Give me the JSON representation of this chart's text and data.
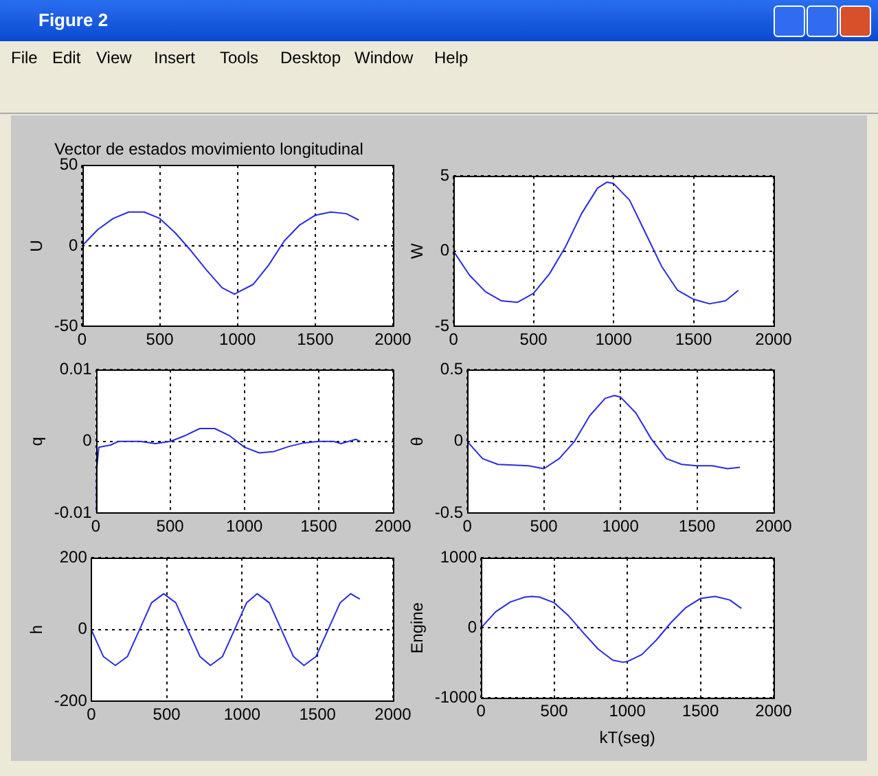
{
  "chart_data": [
    {
      "type": "line",
      "title": "Vector de estados movimiento longitudinal",
      "ylabel": "U",
      "annotations": [
        "Figure 2",
        "File",
        "Edit",
        "View",
        "Insert",
        "Tools",
        "Desktop",
        "Window",
        "Help"
      ],
      "x": [
        0,
        100,
        200,
        300,
        400,
        500,
        600,
        700,
        800,
        900,
        980,
        1000,
        1100,
        1200,
        1300,
        1400,
        1500,
        1600,
        1700,
        1780
      ],
      "series": [
        {
          "color": "#2a2ae0",
          "values": [
            0,
            10,
            17,
            21,
            21,
            17,
            8,
            -3,
            -15,
            -26,
            -30,
            -29,
            -24,
            -12,
            3,
            13,
            19,
            21,
            20,
            16
          ]
        }
      ],
      "xlim": [
        0,
        2000
      ],
      "xticks": [
        0,
        500,
        1000,
        1500,
        2000
      ],
      "ylim": [
        -50,
        50
      ],
      "yticks": [
        -50,
        0,
        50
      ],
      "grid": true
    },
    {
      "type": "line",
      "ylabel": "W",
      "x": [
        0,
        100,
        200,
        300,
        400,
        500,
        600,
        700,
        800,
        900,
        960,
        1000,
        1100,
        1200,
        1300,
        1400,
        1500,
        1600,
        1700,
        1780
      ],
      "series": [
        {
          "color": "#2a2ae0",
          "values": [
            0,
            -1.6,
            -2.7,
            -3.3,
            -3.4,
            -2.8,
            -1.5,
            0.3,
            2.5,
            4.2,
            4.6,
            4.5,
            3.4,
            1.2,
            -1.0,
            -2.6,
            -3.2,
            -3.5,
            -3.3,
            -2.6
          ]
        }
      ],
      "xlim": [
        0,
        2000
      ],
      "xticks": [
        0,
        500,
        1000,
        1500,
        2000
      ],
      "ylim": [
        -5,
        5
      ],
      "yticks": [
        -5,
        0,
        5
      ],
      "grid": true
    },
    {
      "type": "line",
      "ylabel": "q",
      "x": [
        0,
        5,
        20,
        100,
        150,
        300,
        400,
        500,
        600,
        700,
        800,
        900,
        1000,
        1100,
        1200,
        1300,
        1400,
        1500,
        1600,
        1650,
        1750,
        1780
      ],
      "series": [
        {
          "color": "#2a2ae0",
          "values": [
            -0.01,
            -0.004,
            -0.0008,
            -0.0005,
            0,
            0,
            -0.0003,
            0,
            0.0008,
            0.0018,
            0.0018,
            0.0008,
            -0.0008,
            -0.0016,
            -0.0014,
            -0.0007,
            -0.0002,
            0,
            0,
            -0.0003,
            0.0003,
            0
          ]
        }
      ],
      "xlim": [
        0,
        2000
      ],
      "xticks": [
        0,
        500,
        1000,
        1500,
        2000
      ],
      "ylim": [
        -0.01,
        0.01
      ],
      "yticks": [
        -0.01,
        0,
        0.01
      ],
      "grid": true
    },
    {
      "type": "line",
      "ylabel": "θ",
      "x": [
        0,
        100,
        200,
        400,
        500,
        600,
        700,
        800,
        900,
        960,
        1000,
        1100,
        1200,
        1300,
        1400,
        1500,
        1600,
        1700,
        1780
      ],
      "series": [
        {
          "color": "#2a2ae0",
          "values": [
            0,
            -0.12,
            -0.16,
            -0.17,
            -0.19,
            -0.12,
            0.0,
            0.18,
            0.3,
            0.32,
            0.31,
            0.2,
            0.02,
            -0.12,
            -0.16,
            -0.17,
            -0.17,
            -0.19,
            -0.18
          ]
        }
      ],
      "xlim": [
        0,
        2000
      ],
      "xticks": [
        0,
        500,
        1000,
        1500,
        2000
      ],
      "ylim": [
        -0.5,
        0.5
      ],
      "yticks": [
        -0.5,
        0,
        0.5
      ],
      "grid": true
    },
    {
      "type": "line",
      "ylabel": "h",
      "x": [
        0,
        80,
        160,
        240,
        320,
        400,
        480,
        560,
        640,
        720,
        790,
        870,
        950,
        1030,
        1100,
        1180,
        1260,
        1340,
        1410,
        1490,
        1570,
        1650,
        1720,
        1780
      ],
      "series": [
        {
          "color": "#2a2ae0",
          "values": [
            0,
            -75,
            -100,
            -75,
            0,
            75,
            100,
            75,
            0,
            -75,
            -100,
            -75,
            0,
            75,
            100,
            75,
            0,
            -75,
            -100,
            -75,
            0,
            75,
            100,
            85
          ]
        }
      ],
      "xlim": [
        0,
        2000
      ],
      "xticks": [
        0,
        500,
        1000,
        1500,
        2000
      ],
      "ylim": [
        -200,
        200
      ],
      "yticks": [
        -200,
        0,
        200
      ],
      "grid": true
    },
    {
      "type": "line",
      "ylabel": "Engine",
      "xlabel": "kT(seg)",
      "x": [
        0,
        100,
        200,
        300,
        350,
        400,
        500,
        600,
        700,
        800,
        900,
        970,
        1000,
        1100,
        1200,
        1300,
        1400,
        1500,
        1600,
        1700,
        1780
      ],
      "series": [
        {
          "color": "#2a2ae0",
          "values": [
            0,
            230,
            370,
            440,
            450,
            440,
            360,
            170,
            -70,
            -300,
            -460,
            -490,
            -480,
            -380,
            -170,
            80,
            290,
            420,
            450,
            400,
            280
          ]
        }
      ],
      "xlim": [
        0,
        2000
      ],
      "xticks": [
        0,
        500,
        1000,
        1500,
        2000
      ],
      "ylim": [
        -1000,
        1000
      ],
      "yticks": [
        -1000,
        0,
        1000
      ],
      "grid": true
    }
  ]
}
